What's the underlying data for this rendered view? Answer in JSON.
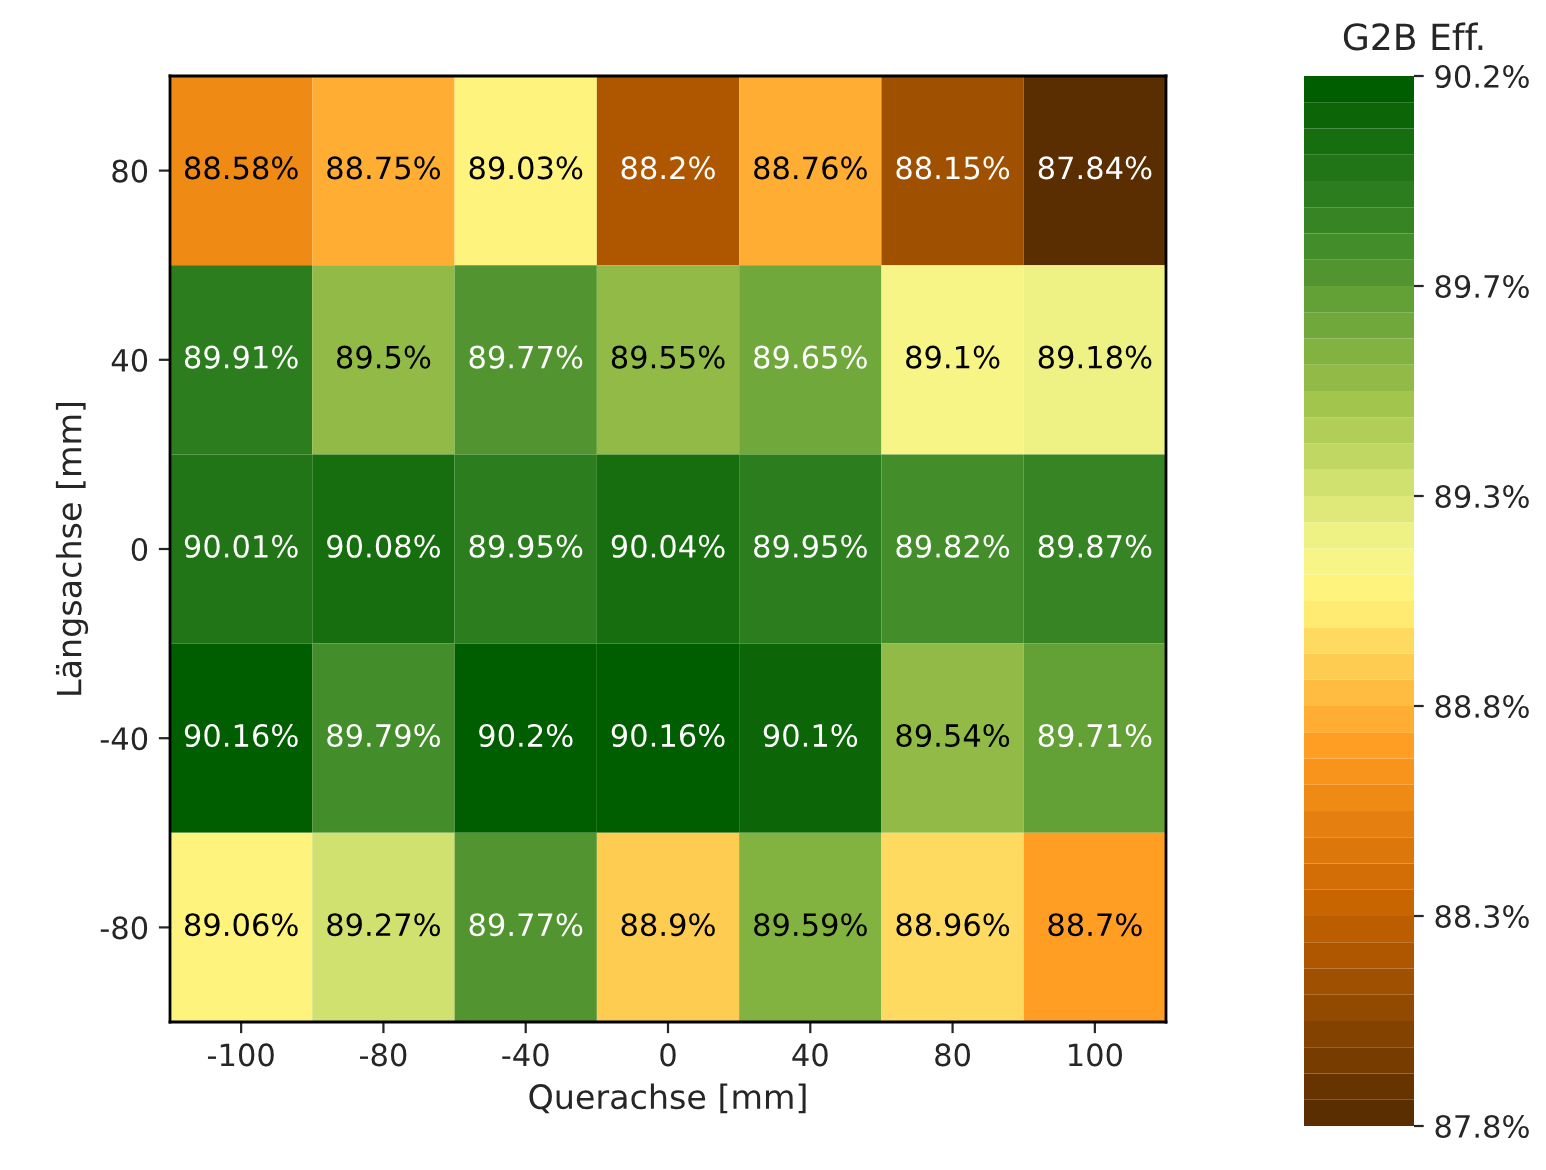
{
  "chart_data": {
    "type": "heatmap",
    "xlabel": "Querachse [mm]",
    "ylabel": "Längsachse [mm]",
    "clabel": "G2B Eff.",
    "categories": [
      "-100",
      "-80",
      "-40",
      "0",
      "40",
      "80",
      "100"
    ],
    "y_categories": [
      "80",
      "40",
      "0",
      "-40",
      "-80"
    ],
    "cells": [
      [
        88.58,
        88.75,
        89.03,
        88.2,
        88.76,
        88.15,
        87.84
      ],
      [
        89.91,
        89.5,
        89.77,
        89.55,
        89.65,
        89.1,
        89.18
      ],
      [
        90.01,
        90.08,
        89.95,
        90.04,
        89.95,
        89.82,
        89.87
      ],
      [
        90.16,
        89.79,
        90.2,
        90.16,
        90.1,
        89.54,
        89.71
      ],
      [
        89.06,
        89.27,
        89.77,
        88.9,
        89.59,
        88.96,
        88.7
      ]
    ],
    "cell_labels": [
      [
        "88.58%",
        "88.75%",
        "89.03%",
        "88.2%",
        "88.76%",
        "88.15%",
        "87.84%"
      ],
      [
        "89.91%",
        "89.5%",
        "89.77%",
        "89.55%",
        "89.65%",
        "89.1%",
        "89.18%"
      ],
      [
        "90.01%",
        "90.08%",
        "89.95%",
        "90.04%",
        "89.95%",
        "89.82%",
        "89.87%"
      ],
      [
        "90.16%",
        "89.79%",
        "90.2%",
        "90.16%",
        "90.1%",
        "89.54%",
        "89.71%"
      ],
      [
        "89.06%",
        "89.27%",
        "89.77%",
        "88.9%",
        "89.59%",
        "88.96%",
        "88.7%"
      ]
    ],
    "clim": [
      87.84,
      90.2
    ],
    "cticks": [
      {
        "value": 87.84,
        "label": "87.8%"
      },
      {
        "value": 88.312,
        "label": "88.3%"
      },
      {
        "value": 88.784,
        "label": "88.8%"
      },
      {
        "value": 89.256,
        "label": "89.3%"
      },
      {
        "value": 89.728,
        "label": "89.7%"
      },
      {
        "value": 90.2,
        "label": "90.2%"
      }
    ]
  }
}
